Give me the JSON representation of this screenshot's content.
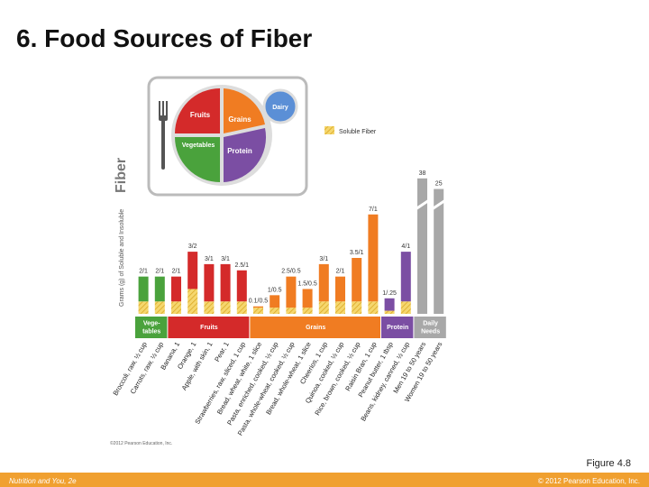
{
  "title": "6. Food Sources of Fiber",
  "figure_label": "Figure 4.8",
  "footer": {
    "left": "Nutrition and You, 2e",
    "right": "© 2012 Pearson Education, Inc."
  },
  "plate": {
    "fruits": "Fruits",
    "grains": "Grains",
    "dairy": "Dairy",
    "vegetables": "Vegetables",
    "protein": "Protein"
  },
  "chart_data": {
    "type": "bar",
    "stacked": true,
    "y_label": "Grams (g) of Soluble and Insoluble",
    "y_label_emphasis": "Fiber",
    "credit": "©2012 Pearson Education, Inc.",
    "categories": [
      "Broccoli, raw, ½ cup",
      "Carrots, raw, ½ cup",
      "Banana, 1",
      "Orange, 1",
      "Apple, with skin, 1",
      "Pear, 1",
      "Strawberries, raw, sliced, 1 cup",
      "Bread, wheat, white, 1 slice",
      "Pasta, enriched, cooked, ½ cup",
      "Pasta, whole-wheat, cooked, ½ cup",
      "Bread, whole-wheat, 1 slice",
      "Cheerios, 1 cup",
      "Quinoa, cooked, ½ cup",
      "Rice, brown, cooked, ½ cup",
      "Raisin Bran, 1 cup",
      "Peanut butter, 1 tbsp",
      "Beans, kidney, canned, ½ cup",
      "Men 19 to 50 years",
      "Women 19 to 50 years"
    ],
    "series": [
      {
        "name": "Soluble Fiber",
        "color": "#f2c94c",
        "values": [
          1,
          1,
          1,
          2,
          1,
          1,
          1,
          0.5,
          0.5,
          0.5,
          0.5,
          1,
          1,
          1,
          1,
          0.25,
          1,
          null,
          null
        ]
      },
      {
        "values": [
          2,
          2,
          2,
          3,
          3,
          3,
          2.5,
          0.1,
          1,
          2.5,
          1.5,
          3,
          2,
          3.5,
          7,
          1,
          4,
          38,
          25
        ],
        "value_labels": [
          "2/1",
          "2/1",
          "2/1",
          "3/2",
          "3/1",
          "3/1",
          "2.5/1",
          "0.1/0.5",
          "1/0.5",
          "2.5/0.5",
          "1.5/0.5",
          "3/1",
          "2/1",
          "3.5/1",
          "7/1",
          "1/.25",
          "4/1",
          "38",
          "25"
        ]
      }
    ],
    "groups": [
      {
        "label": [
          "Vege-",
          "tables"
        ],
        "color": "#4aa23c",
        "size": 2
      },
      {
        "label": [
          "Fruits"
        ],
        "color": "#d42a2a",
        "size": 5
      },
      {
        "label": [
          "Grains"
        ],
        "color": "#f07c22",
        "size": 8
      },
      {
        "label": [
          "Protein"
        ],
        "color": "#7b4ea3",
        "size": 2
      },
      {
        "label": [
          "Daily",
          "Needs"
        ],
        "color": "#a8a8a8",
        "size": 2
      }
    ],
    "ylim": [
      0,
      40
    ],
    "ybreak": 9
  }
}
